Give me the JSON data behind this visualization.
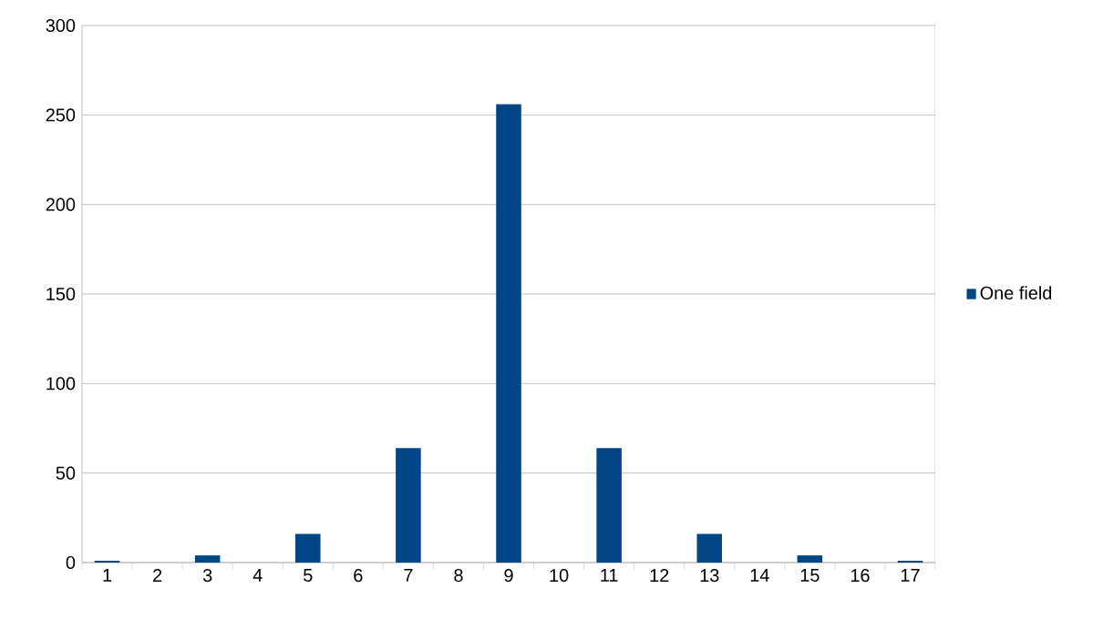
{
  "chart_data": {
    "type": "bar",
    "categories": [
      "1",
      "2",
      "3",
      "4",
      "5",
      "6",
      "7",
      "8",
      "9",
      "10",
      "11",
      "12",
      "13",
      "14",
      "15",
      "16",
      "17"
    ],
    "series": [
      {
        "name": "One field",
        "color": "#004586",
        "values": [
          1,
          0,
          4,
          0,
          16,
          0,
          64,
          0,
          256,
          0,
          64,
          0,
          16,
          0,
          4,
          0,
          1
        ]
      }
    ],
    "ylim": [
      0,
      300
    ],
    "yticks": [
      0,
      50,
      100,
      150,
      200,
      250,
      300
    ],
    "grid": "y",
    "legend": "right"
  }
}
